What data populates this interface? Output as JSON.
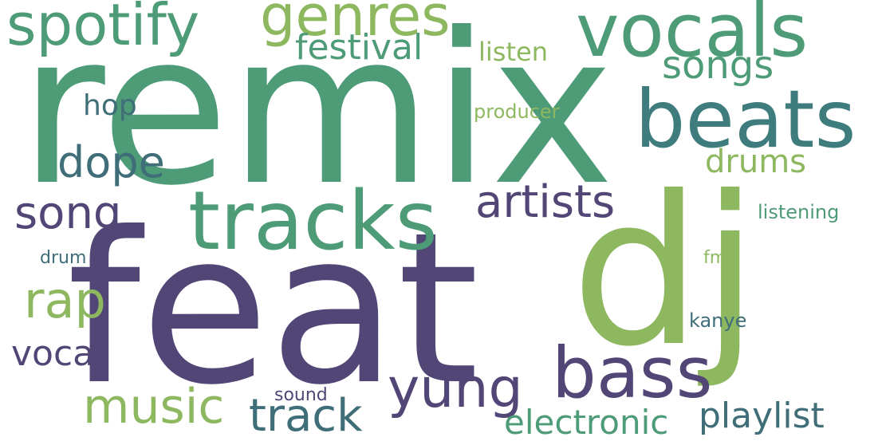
{
  "word_cloud": {
    "words": [
      {
        "text": "remix",
        "color": "#4e9b78"
      },
      {
        "text": "feat",
        "color": "#514676"
      },
      {
        "text": "dj",
        "color": "#8eb860"
      },
      {
        "text": "tracks",
        "color": "#4e9b78"
      },
      {
        "text": "beats",
        "color": "#3f7c7d"
      },
      {
        "text": "vocals",
        "color": "#4e9b78"
      },
      {
        "text": "bass",
        "color": "#514676"
      },
      {
        "text": "spotify",
        "color": "#4e9b78"
      },
      {
        "text": "genres",
        "color": "#8eb860"
      },
      {
        "text": "artists",
        "color": "#514676"
      },
      {
        "text": "yung",
        "color": "#514676"
      },
      {
        "text": "music",
        "color": "#8eb860"
      },
      {
        "text": "track",
        "color": "#3f6e79"
      },
      {
        "text": "song",
        "color": "#514676"
      },
      {
        "text": "songs",
        "color": "#4e9b78"
      },
      {
        "text": "festival",
        "color": "#4e9b78"
      },
      {
        "text": "dope",
        "color": "#3f6e79"
      },
      {
        "text": "rap",
        "color": "#8eb860"
      },
      {
        "text": "playlist",
        "color": "#3f6e79"
      },
      {
        "text": "electronic",
        "color": "#4e9b78"
      },
      {
        "text": "vocal",
        "color": "#514676"
      },
      {
        "text": "drums",
        "color": "#8eb860"
      },
      {
        "text": "hop",
        "color": "#3f6e79"
      },
      {
        "text": "listen",
        "color": "#8eb860"
      },
      {
        "text": "listening",
        "color": "#4e9b78"
      },
      {
        "text": "producer",
        "color": "#8eb860"
      },
      {
        "text": "kanye",
        "color": "#3f6e79"
      },
      {
        "text": "sound",
        "color": "#514676"
      },
      {
        "text": "drum",
        "color": "#3f6e79"
      },
      {
        "text": "fm",
        "color": "#8eb860"
      }
    ]
  }
}
